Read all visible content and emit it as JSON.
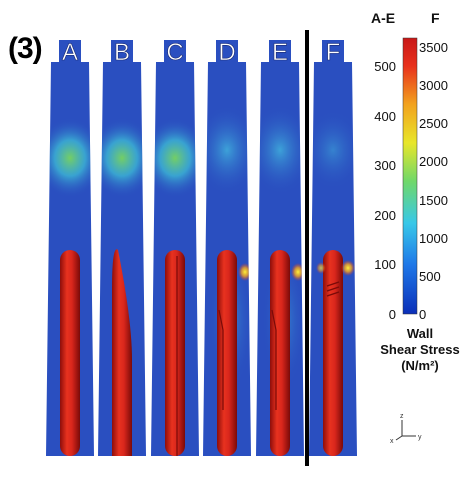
{
  "figure": {
    "panel_label": "(3)",
    "columns": [
      {
        "id": "A",
        "label": "A"
      },
      {
        "id": "B",
        "label": "B"
      },
      {
        "id": "C",
        "label": "C"
      },
      {
        "id": "D",
        "label": "D"
      },
      {
        "id": "E",
        "label": "E"
      },
      {
        "id": "F",
        "label": "F"
      }
    ]
  },
  "colorbar": {
    "scale_a_title": "A-E",
    "scale_f_title": "F",
    "scale_a_ticks": [
      "500",
      "400",
      "300",
      "200",
      "100",
      "0"
    ],
    "scale_f_ticks": [
      "3500",
      "3000",
      "2500",
      "2000",
      "1500",
      "1000",
      "500",
      "0"
    ],
    "title_line1": "Wall",
    "title_line2": "Shear Stress",
    "title_line3": "(N/m²)",
    "colors": [
      "#0b2fb8",
      "#1e78e8",
      "#38c8e8",
      "#6fd86a",
      "#e8e62a",
      "#f2a21e",
      "#e8301c",
      "#c81818"
    ]
  },
  "axes_triad": {
    "z": "z",
    "x": "x",
    "y": "y"
  },
  "colors": {
    "vessel_blue": "#2a4fc0",
    "rod_red": "#d8261c",
    "divider": "#000000"
  }
}
